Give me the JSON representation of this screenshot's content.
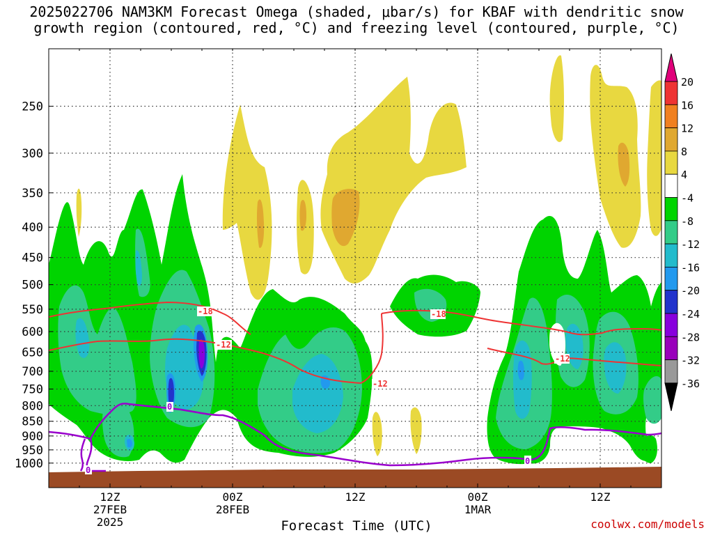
{
  "title": {
    "line1": "2025022706 NAM3KM Forecast Omega (shaded, μbar/s) for KBAF with dendritic snow",
    "line2": "growth region (contoured, red, °C) and freezing level (contoured, purple, °C)"
  },
  "footer": "coolwx.com/models",
  "chart_data": {
    "type": "heatmap",
    "title": "2025022706 NAM3KM Forecast Omega (shaded, μbar/s) for KBAF with dendritic snow growth region (contoured, red, °C) and freezing level (contoured, purple, °C)",
    "xlabel": "Forecast Time (UTC)",
    "ylabel": "",
    "y_ticks": [
      250,
      300,
      350,
      400,
      450,
      500,
      550,
      600,
      650,
      700,
      750,
      800,
      850,
      900,
      950,
      1000
    ],
    "x_ticks": [
      {
        "label": "12Z",
        "sub": [
          "27FEB",
          "2025"
        ],
        "hour": 30
      },
      {
        "label": "00Z",
        "sub": [
          "28FEB"
        ],
        "hour": 42
      },
      {
        "label": "12Z",
        "sub": [],
        "hour": 54
      },
      {
        "label": "00Z",
        "sub": [
          "1MAR"
        ],
        "hour": 66
      },
      {
        "label": "12Z",
        "sub": [],
        "hour": 78
      }
    ],
    "xlim_hours": [
      24,
      84
    ],
    "ylim": [
      1100,
      200
    ],
    "colorbar": {
      "labels": [
        20,
        16,
        12,
        8,
        4,
        -4,
        -8,
        -12,
        -16,
        -20,
        -24,
        -28,
        -32,
        -36
      ],
      "colors": [
        "#e0007a",
        "#ee3333",
        "#f08020",
        "#e0a830",
        "#e8d840",
        "#ffffff",
        "#00d400",
        "#33cc88",
        "#22bbcc",
        "#2299ee",
        "#2233cc",
        "#8800dd",
        "#9900bb",
        "#999999",
        "#000000"
      ]
    },
    "contours": [
      {
        "level": -18,
        "color": "#ee3333",
        "labels": [
          "-18",
          "-18"
        ]
      },
      {
        "level": -12,
        "color": "#ee3333",
        "labels": [
          "-12",
          "-12",
          "-12"
        ]
      },
      {
        "level": 0,
        "color": "#9900cc",
        "labels": [
          "0",
          "0",
          "0"
        ]
      }
    ],
    "grid": true
  }
}
